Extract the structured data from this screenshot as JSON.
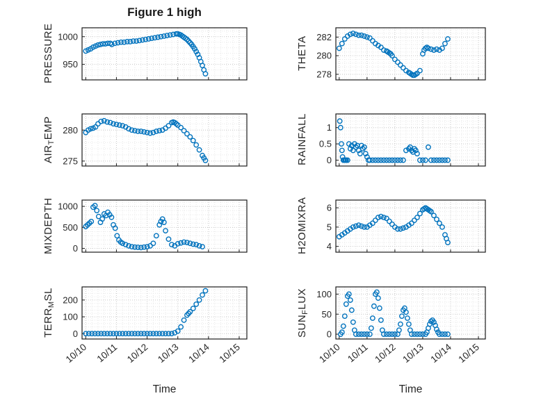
{
  "title": "Figure 1 high",
  "xlabel": "Time",
  "accent_color": "#0072BD",
  "chart_data": [
    {
      "type": "scatter",
      "name": "PRESSURE",
      "label": {
        "pre": "PRESSURE",
        "sub": "",
        "post": ""
      },
      "ylim": [
        922,
        1016
      ],
      "yticks": [
        950,
        1000
      ],
      "xlim": [
        -0.12,
        5.25
      ],
      "xticks": [
        0,
        1,
        2,
        3,
        4,
        5
      ],
      "xticklabels": [
        "10/10",
        "10/11",
        "10/12",
        "10/13",
        "10/14",
        "10/15"
      ],
      "show_xlabels": false,
      "x": [
        0,
        0.08,
        0.16,
        0.24,
        0.32,
        0.4,
        0.48,
        0.56,
        0.64,
        0.72,
        0.8,
        0.85,
        0.95,
        1.05,
        1.15,
        1.25,
        1.35,
        1.45,
        1.55,
        1.65,
        1.75,
        1.85,
        1.95,
        2.05,
        2.15,
        2.25,
        2.35,
        2.45,
        2.55,
        2.65,
        2.75,
        2.85,
        2.95,
        3.0,
        3.05,
        3.1,
        3.15,
        3.2,
        3.25,
        3.3,
        3.35,
        3.4,
        3.45,
        3.5,
        3.55,
        3.6,
        3.65,
        3.7,
        3.75,
        3.8,
        3.85,
        3.9
      ],
      "y": [
        974,
        976,
        978,
        981,
        983,
        985,
        986,
        987,
        987,
        988,
        988,
        986,
        988,
        989,
        990,
        990,
        991,
        991,
        992,
        992,
        993,
        994,
        995,
        996,
        997,
        998,
        999,
        1000,
        1001,
        1002,
        1003,
        1004,
        1005,
        1005,
        1004,
        1003,
        1001,
        999,
        997,
        995,
        992,
        989,
        986,
        982,
        978,
        973,
        968,
        962,
        955,
        948,
        940,
        933
      ]
    },
    {
      "type": "scatter",
      "name": "THETA",
      "label": {
        "pre": "THETA",
        "sub": "",
        "post": ""
      },
      "ylim": [
        277.4,
        283.0
      ],
      "yticks": [
        278,
        280,
        282
      ],
      "xlim": [
        -0.12,
        5.25
      ],
      "xticks": [
        0,
        1,
        2,
        3,
        4,
        5
      ],
      "xticklabels": [
        "10/10",
        "10/11",
        "10/12",
        "10/13",
        "10/14",
        "10/15"
      ],
      "show_xlabels": false,
      "x": [
        0,
        0.1,
        0.2,
        0.3,
        0.4,
        0.5,
        0.6,
        0.7,
        0.8,
        0.9,
        1.0,
        1.1,
        1.2,
        1.3,
        1.4,
        1.5,
        1.6,
        1.7,
        1.75,
        1.8,
        1.85,
        1.9,
        2.0,
        2.1,
        2.2,
        2.3,
        2.4,
        2.5,
        2.55,
        2.6,
        2.65,
        2.7,
        2.75,
        2.8,
        2.9,
        3.0,
        3.05,
        3.1,
        3.15,
        3.2,
        3.3,
        3.4,
        3.5,
        3.6,
        3.7,
        3.8,
        3.9
      ],
      "y": [
        280.8,
        281.3,
        281.8,
        282.1,
        282.3,
        282.4,
        282.3,
        282.2,
        282.2,
        282.1,
        282.0,
        281.9,
        281.6,
        281.3,
        281.1,
        280.9,
        280.6,
        280.5,
        280.4,
        280.3,
        280.2,
        280.0,
        279.6,
        279.3,
        279.0,
        278.7,
        278.4,
        278.2,
        278.1,
        278.0,
        277.9,
        277.9,
        278.0,
        278.1,
        278.4,
        280.2,
        280.6,
        280.8,
        280.9,
        280.8,
        280.7,
        280.6,
        280.7,
        280.6,
        280.8,
        281.3,
        281.8
      ]
    },
    {
      "type": "scatter",
      "name": "AIR_TEMP",
      "label": {
        "pre": "AIR",
        "sub": "T",
        "post": "EMP"
      },
      "ylim": [
        274.2,
        282.6
      ],
      "yticks": [
        275,
        280
      ],
      "xlim": [
        -0.12,
        5.25
      ],
      "xticks": [
        0,
        1,
        2,
        3,
        4,
        5
      ],
      "xticklabels": [
        "10/10",
        "10/11",
        "10/12",
        "10/13",
        "10/14",
        "10/15"
      ],
      "show_xlabels": false,
      "x": [
        0,
        0.08,
        0.16,
        0.24,
        0.32,
        0.4,
        0.5,
        0.6,
        0.7,
        0.8,
        0.9,
        1.0,
        1.1,
        1.2,
        1.3,
        1.4,
        1.5,
        1.6,
        1.7,
        1.8,
        1.9,
        2.0,
        2.1,
        2.2,
        2.3,
        2.4,
        2.5,
        2.6,
        2.7,
        2.8,
        2.85,
        2.9,
        2.95,
        3.0,
        3.1,
        3.2,
        3.3,
        3.4,
        3.5,
        3.6,
        3.7,
        3.8,
        3.85,
        3.9
      ],
      "y": [
        279.6,
        280.0,
        280.2,
        280.3,
        280.5,
        281.0,
        281.4,
        281.5,
        281.3,
        281.2,
        281.0,
        280.9,
        280.8,
        280.7,
        280.5,
        280.2,
        280.0,
        279.9,
        279.8,
        279.8,
        279.7,
        279.6,
        279.5,
        279.6,
        279.8,
        279.9,
        280.0,
        280.3,
        280.7,
        281.2,
        281.3,
        281.2,
        281.0,
        280.8,
        280.4,
        279.9,
        279.4,
        278.9,
        278.3,
        277.6,
        276.8,
        275.9,
        275.5,
        275.1
      ]
    },
    {
      "type": "scatter",
      "name": "RAINFALL",
      "label": {
        "pre": "RAINFALL",
        "sub": "",
        "post": ""
      },
      "ylim": [
        -0.18,
        1.42
      ],
      "yticks": [
        0,
        0.5,
        1
      ],
      "xlim": [
        -0.12,
        5.25
      ],
      "xticks": [
        0,
        1,
        2,
        3,
        4,
        5
      ],
      "xticklabels": [
        "10/10",
        "10/11",
        "10/12",
        "10/13",
        "10/14",
        "10/15"
      ],
      "show_xlabels": false,
      "x": [
        0.02,
        0.05,
        0.08,
        0.1,
        0.12,
        0.15,
        0.18,
        0.22,
        0.25,
        0.3,
        0.35,
        0.4,
        0.45,
        0.5,
        0.55,
        0.6,
        0.65,
        0.7,
        0.75,
        0.8,
        0.85,
        0.9,
        0.95,
        1.0,
        1.05,
        1.1,
        1.2,
        1.3,
        1.4,
        1.5,
        1.6,
        1.7,
        1.8,
        1.9,
        2.0,
        2.1,
        2.2,
        2.3,
        2.4,
        2.5,
        2.55,
        2.6,
        2.65,
        2.7,
        2.75,
        2.8,
        2.9,
        3.0,
        3.1,
        3.2,
        3.3,
        3.4,
        3.5,
        3.6,
        3.7,
        3.8,
        3.9
      ],
      "y": [
        1.2,
        1.0,
        0.5,
        0.3,
        0.1,
        0,
        0,
        0,
        0,
        0,
        0.5,
        0.35,
        0.45,
        0.3,
        0.5,
        0.4,
        0.45,
        0.3,
        0.2,
        0.45,
        0.35,
        0.4,
        0.2,
        0.1,
        0,
        0,
        0,
        0,
        0,
        0,
        0,
        0,
        0,
        0,
        0,
        0,
        0,
        0,
        0.3,
        0.35,
        0.4,
        0.3,
        0.25,
        0.35,
        0.3,
        0.2,
        0,
        0,
        0,
        0.4,
        0,
        0,
        0,
        0,
        0,
        0,
        0
      ]
    },
    {
      "type": "scatter",
      "name": "MIXDEPTH",
      "label": {
        "pre": "MIXDEPTH",
        "sub": "",
        "post": ""
      },
      "ylim": [
        -90,
        1150
      ],
      "yticks": [
        0,
        500,
        1000
      ],
      "xlim": [
        -0.12,
        5.25
      ],
      "xticks": [
        0,
        1,
        2,
        3,
        4,
        5
      ],
      "xticklabels": [
        "10/10",
        "10/11",
        "10/12",
        "10/13",
        "10/14",
        "10/15"
      ],
      "show_xlabels": false,
      "x": [
        0,
        0.06,
        0.12,
        0.18,
        0.24,
        0.3,
        0.36,
        0.42,
        0.48,
        0.54,
        0.6,
        0.66,
        0.72,
        0.78,
        0.84,
        0.9,
        0.96,
        1.02,
        1.08,
        1.14,
        1.2,
        1.3,
        1.4,
        1.5,
        1.6,
        1.7,
        1.8,
        1.9,
        2.0,
        2.1,
        2.2,
        2.3,
        2.4,
        2.45,
        2.5,
        2.55,
        2.6,
        2.7,
        2.8,
        2.9,
        3.0,
        3.1,
        3.2,
        3.3,
        3.4,
        3.5,
        3.6,
        3.7,
        3.8
      ],
      "y": [
        520,
        560,
        600,
        640,
        980,
        1020,
        900,
        760,
        620,
        700,
        820,
        780,
        860,
        800,
        740,
        560,
        480,
        300,
        200,
        150,
        120,
        90,
        60,
        40,
        30,
        25,
        20,
        30,
        40,
        60,
        120,
        300,
        560,
        640,
        700,
        620,
        420,
        220,
        90,
        60,
        110,
        130,
        150,
        140,
        120,
        100,
        90,
        60,
        40
      ]
    },
    {
      "type": "scatter",
      "name": "H2OMIXRA",
      "label": {
        "pre": "H2OMIXRA",
        "sub": "",
        "post": ""
      },
      "ylim": [
        3.7,
        6.4
      ],
      "yticks": [
        4,
        5,
        6
      ],
      "xlim": [
        -0.12,
        5.25
      ],
      "xticks": [
        0,
        1,
        2,
        3,
        4,
        5
      ],
      "xticklabels": [
        "10/10",
        "10/11",
        "10/12",
        "10/13",
        "10/14",
        "10/15"
      ],
      "show_xlabels": false,
      "x": [
        0,
        0.1,
        0.2,
        0.3,
        0.4,
        0.5,
        0.6,
        0.7,
        0.8,
        0.9,
        1.0,
        1.1,
        1.2,
        1.3,
        1.4,
        1.5,
        1.6,
        1.7,
        1.8,
        1.9,
        2.0,
        2.1,
        2.2,
        2.3,
        2.4,
        2.5,
        2.6,
        2.7,
        2.8,
        2.9,
        3.0,
        3.05,
        3.1,
        3.15,
        3.2,
        3.25,
        3.3,
        3.4,
        3.5,
        3.6,
        3.7,
        3.8,
        3.85,
        3.9
      ],
      "y": [
        4.5,
        4.6,
        4.7,
        4.8,
        4.9,
        5.0,
        5.05,
        5.1,
        5.05,
        5.0,
        5.0,
        5.1,
        5.2,
        5.35,
        5.5,
        5.55,
        5.5,
        5.45,
        5.3,
        5.15,
        5.0,
        4.9,
        4.9,
        4.95,
        5.0,
        5.1,
        5.2,
        5.35,
        5.5,
        5.7,
        5.9,
        5.95,
        6.0,
        5.95,
        5.9,
        5.85,
        5.8,
        5.6,
        5.4,
        5.2,
        5.0,
        4.6,
        4.4,
        4.2
      ]
    },
    {
      "type": "scatter",
      "name": "TERR_MSL",
      "label": {
        "pre": "TERR",
        "sub": "M",
        "post": "SL"
      },
      "ylim": [
        -32,
        278
      ],
      "yticks": [
        0,
        100,
        200
      ],
      "xlim": [
        -0.12,
        5.25
      ],
      "xticks": [
        0,
        1,
        2,
        3,
        4,
        5
      ],
      "xticklabels": [
        "10/10",
        "10/11",
        "10/12",
        "10/13",
        "10/14",
        "10/15"
      ],
      "show_xlabels": true,
      "x": [
        0,
        0.1,
        0.2,
        0.3,
        0.4,
        0.5,
        0.6,
        0.7,
        0.8,
        0.9,
        1.0,
        1.1,
        1.2,
        1.3,
        1.4,
        1.5,
        1.6,
        1.7,
        1.8,
        1.9,
        2.0,
        2.1,
        2.2,
        2.3,
        2.4,
        2.5,
        2.6,
        2.7,
        2.8,
        2.9,
        3.0,
        3.1,
        3.2,
        3.3,
        3.35,
        3.4,
        3.5,
        3.6,
        3.7,
        3.8,
        3.9
      ],
      "y": [
        0,
        0,
        0,
        0,
        0,
        0,
        0,
        0,
        0,
        0,
        0,
        0,
        0,
        0,
        0,
        0,
        0,
        0,
        0,
        0,
        0,
        0,
        0,
        0,
        0,
        0,
        0,
        0,
        0,
        5,
        15,
        40,
        80,
        110,
        120,
        130,
        150,
        175,
        200,
        230,
        255
      ]
    },
    {
      "type": "scatter",
      "name": "SUN_FLUX",
      "label": {
        "pre": "SUN",
        "sub": "F",
        "post": "LUX"
      },
      "ylim": [
        -12,
        118
      ],
      "yticks": [
        0,
        50,
        100
      ],
      "xlim": [
        -0.12,
        5.25
      ],
      "xticks": [
        0,
        1,
        2,
        3,
        4,
        5
      ],
      "xticklabels": [
        "10/10",
        "10/11",
        "10/12",
        "10/13",
        "10/14",
        "10/15"
      ],
      "show_xlabels": true,
      "x": [
        0.05,
        0.1,
        0.15,
        0.2,
        0.25,
        0.3,
        0.35,
        0.4,
        0.45,
        0.5,
        0.55,
        0.6,
        0.7,
        0.8,
        0.9,
        1.0,
        1.1,
        1.15,
        1.2,
        1.25,
        1.3,
        1.35,
        1.4,
        1.45,
        1.5,
        1.55,
        1.6,
        1.7,
        1.8,
        1.9,
        2.0,
        2.1,
        2.15,
        2.2,
        2.25,
        2.3,
        2.35,
        2.4,
        2.45,
        2.5,
        2.55,
        2.6,
        2.7,
        2.8,
        2.9,
        3.0,
        3.1,
        3.15,
        3.2,
        3.25,
        3.3,
        3.35,
        3.4,
        3.45,
        3.5,
        3.55,
        3.6,
        3.7,
        3.8,
        3.9
      ],
      "y": [
        0,
        5,
        20,
        45,
        75,
        95,
        100,
        85,
        60,
        30,
        10,
        0,
        0,
        0,
        0,
        0,
        0,
        15,
        40,
        70,
        100,
        105,
        90,
        65,
        35,
        10,
        0,
        0,
        0,
        0,
        0,
        0,
        10,
        25,
        45,
        60,
        65,
        55,
        40,
        25,
        10,
        0,
        0,
        0,
        0,
        0,
        0,
        5,
        15,
        25,
        32,
        35,
        30,
        22,
        12,
        5,
        0,
        0,
        0,
        0
      ]
    }
  ]
}
